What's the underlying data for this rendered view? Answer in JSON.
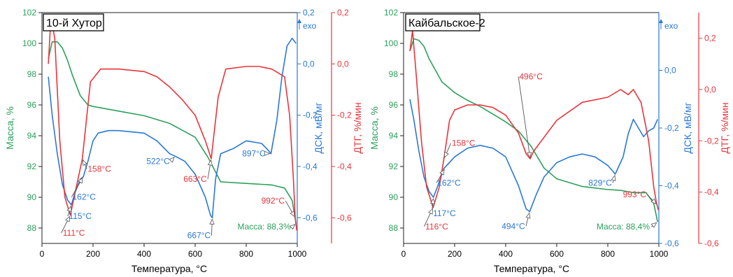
{
  "chart_data": [
    {
      "type": "line",
      "title": "10-й Хутор",
      "xlabel": "Температура, °C",
      "xlim": [
        0,
        1000
      ],
      "xticks": [
        "0",
        "200",
        "400",
        "600",
        "800",
        "1000"
      ],
      "exo_label": "exo",
      "axes": {
        "mass": {
          "label": "Масса, %",
          "ylim": [
            87,
            102
          ],
          "ticks": [
            "88",
            "90",
            "92",
            "94",
            "96",
            "98",
            "100",
            "102"
          ],
          "color": "#2ca05a"
        },
        "dsc": {
          "label": "ДСК, мВ/мг",
          "ylim": [
            -0.7,
            0.2
          ],
          "ticks": [
            "-0,6",
            "-0,4",
            "-0,2",
            "0,0",
            "0,2"
          ],
          "tick_values": [
            -0.6,
            -0.4,
            -0.2,
            0.0,
            0.2
          ],
          "color": "#2a78d6"
        },
        "dtg": {
          "label": "ДТГ, %/мин",
          "ylim": [
            -0.7,
            0.2
          ],
          "ticks": [
            "-0,6",
            "-0,4",
            "-0,2",
            "0,0",
            "0,2"
          ],
          "tick_values": [
            -0.6,
            -0.4,
            -0.2,
            0.0,
            0.2
          ],
          "color": "#e8353b"
        }
      },
      "series": [
        {
          "axis": "mass",
          "color": "#2ca05a",
          "x": [
            25,
            40,
            60,
            80,
            100,
            120,
            150,
            180,
            200,
            300,
            400,
            500,
            600,
            650,
            700,
            800,
            900,
            950,
            980,
            995
          ],
          "y": [
            99.0,
            100.1,
            100.1,
            99.7,
            98.9,
            97.9,
            96.6,
            96.0,
            95.9,
            95.6,
            95.3,
            94.8,
            93.9,
            92.6,
            91.0,
            90.9,
            90.8,
            90.6,
            89.8,
            88.3
          ]
        },
        {
          "axis": "dsc",
          "color": "#2a78d6",
          "x": [
            25,
            40,
            60,
            80,
            100,
            115,
            130,
            150,
            162,
            180,
            200,
            220,
            260,
            300,
            400,
            450,
            500,
            522,
            560,
            600,
            640,
            660,
            667,
            680,
            700,
            750,
            800,
            860,
            880,
            897,
            920,
            940,
            960,
            980,
            995
          ],
          "y": [
            -0.05,
            -0.2,
            -0.35,
            -0.47,
            -0.53,
            -0.55,
            -0.5,
            -0.45,
            -0.44,
            -0.38,
            -0.3,
            -0.27,
            -0.26,
            -0.26,
            -0.27,
            -0.3,
            -0.35,
            -0.36,
            -0.38,
            -0.43,
            -0.52,
            -0.59,
            -0.6,
            -0.45,
            -0.35,
            -0.33,
            -0.3,
            -0.31,
            -0.33,
            -0.35,
            -0.22,
            -0.05,
            0.07,
            0.1,
            0.08
          ]
        },
        {
          "axis": "dtg",
          "color": "#e8353b",
          "x": [
            25,
            35,
            50,
            70,
            90,
            111,
            130,
            158,
            190,
            230,
            250,
            300,
            400,
            450,
            500,
            550,
            600,
            640,
            663,
            690,
            720,
            800,
            850,
            900,
            950,
            970,
            985,
            992,
            998
          ],
          "y": [
            0.0,
            0.18,
            0.1,
            -0.3,
            -0.52,
            -0.59,
            -0.5,
            -0.37,
            -0.07,
            -0.02,
            -0.02,
            -0.02,
            -0.03,
            -0.05,
            -0.09,
            -0.14,
            -0.2,
            -0.3,
            -0.37,
            -0.13,
            -0.02,
            -0.01,
            -0.01,
            -0.02,
            -0.05,
            -0.2,
            -0.45,
            -0.6,
            -0.65
          ]
        }
      ],
      "annotations": [
        {
          "text": "158°C",
          "color": "#e8353b",
          "x": 158,
          "y": -0.37,
          "axis": "dtg",
          "tx": 225,
          "ty": -0.42
        },
        {
          "text": "162°C",
          "color": "#2a78d6",
          "x": 162,
          "y": -0.44,
          "axis": "dsc",
          "tx": 165,
          "ty": -0.53
        },
        {
          "text": "115°C",
          "color": "#2a78d6",
          "x": 115,
          "y": -0.55,
          "axis": "dsc",
          "tx": 150,
          "ty": -0.605
        },
        {
          "text": "111°C",
          "color": "#e8353b",
          "x": 111,
          "y": -0.59,
          "axis": "dtg",
          "tx": 125,
          "ty": -0.67
        },
        {
          "text": "522°C",
          "color": "#2a78d6",
          "x": 522,
          "y": -0.36,
          "axis": "dsc",
          "tx": 455,
          "ty": -0.39
        },
        {
          "text": "663°C",
          "color": "#e8353b",
          "x": 663,
          "y": -0.37,
          "axis": "dtg",
          "tx": 600,
          "ty": -0.46
        },
        {
          "text": "897°C",
          "color": "#2a78d6",
          "x": 897,
          "y": -0.35,
          "axis": "dsc",
          "tx": 830,
          "ty": -0.36
        },
        {
          "text": "667°C",
          "color": "#2a78d6",
          "x": 667,
          "y": -0.6,
          "axis": "dsc",
          "tx": 615,
          "ty": -0.68
        },
        {
          "text": "992°C",
          "color": "#e8353b",
          "x": 992,
          "y": -0.6,
          "axis": "dtg",
          "tx": 905,
          "ty": -0.545
        },
        {
          "text": "Масса: 88,3%",
          "color": "#2ca05a",
          "x": 995,
          "y": 88.3,
          "axis": "mass",
          "tx": 870,
          "ty": 87.9
        }
      ]
    },
    {
      "type": "line",
      "title": "Кайбальское-2",
      "xlabel": "Температура, °C",
      "xlim": [
        0,
        1000
      ],
      "xticks": [
        "0",
        "200",
        "400",
        "600",
        "800",
        "1000"
      ],
      "exo_label": "exo",
      "axes": {
        "mass": {
          "label": "Масса, %",
          "ylim": [
            87,
            102
          ],
          "ticks": [
            "88",
            "90",
            "92",
            "94",
            "96",
            "98",
            "100",
            "102"
          ],
          "color": "#2ca05a"
        },
        "dsc": {
          "label": "ДСК, мВ/мг",
          "ylim": [
            -0.6,
            0.2
          ],
          "ticks": [
            "-0,6",
            "-0,4",
            "-0,2",
            "0,0"
          ],
          "tick_values": [
            -0.6,
            -0.4,
            -0.2,
            0.0
          ],
          "color": "#2a78d6"
        },
        "dtg": {
          "label": "ДТГ, %/мин",
          "ylim": [
            -0.6,
            0.3
          ],
          "ticks": [
            "-0,6",
            "-0,4",
            "-0,2",
            "0,0",
            "0,2"
          ],
          "tick_values": [
            -0.6,
            -0.4,
            -0.2,
            0.0,
            0.2
          ],
          "color": "#e8353b"
        }
      },
      "series": [
        {
          "axis": "mass",
          "color": "#2ca05a",
          "x": [
            25,
            40,
            60,
            80,
            100,
            150,
            200,
            250,
            300,
            400,
            450,
            500,
            550,
            600,
            700,
            800,
            850,
            900,
            950,
            980,
            995
          ],
          "y": [
            99.5,
            100.3,
            100.2,
            99.8,
            99.0,
            97.5,
            96.8,
            96.3,
            95.9,
            94.9,
            94.3,
            93.3,
            91.9,
            91.2,
            90.7,
            90.5,
            90.45,
            90.3,
            90.3,
            89.6,
            88.4
          ]
        },
        {
          "axis": "dsc",
          "color": "#2a78d6",
          "x": [
            25,
            40,
            60,
            80,
            100,
            117,
            130,
            158,
            200,
            250,
            300,
            350,
            400,
            450,
            480,
            494,
            520,
            550,
            600,
            650,
            700,
            750,
            800,
            820,
            829,
            860,
            880,
            900,
            920,
            940,
            960,
            980,
            995
          ],
          "y": [
            -0.1,
            -0.17,
            -0.28,
            -0.37,
            -0.42,
            -0.44,
            -0.41,
            -0.34,
            -0.3,
            -0.27,
            -0.26,
            -0.27,
            -0.3,
            -0.4,
            -0.48,
            -0.49,
            -0.43,
            -0.37,
            -0.32,
            -0.3,
            -0.29,
            -0.3,
            -0.33,
            -0.35,
            -0.36,
            -0.3,
            -0.22,
            -0.17,
            -0.2,
            -0.23,
            -0.21,
            -0.2,
            -0.17
          ]
        },
        {
          "axis": "dtg",
          "color": "#e8353b",
          "x": [
            25,
            35,
            50,
            70,
            90,
            116,
            140,
            158,
            180,
            200,
            250,
            300,
            350,
            400,
            450,
            480,
            496,
            510,
            540,
            600,
            700,
            800,
            850,
            880,
            900,
            930,
            960,
            980,
            990,
            998
          ],
          "y": [
            0.15,
            0.23,
            0.05,
            -0.2,
            -0.38,
            -0.46,
            -0.38,
            -0.27,
            -0.12,
            -0.08,
            -0.06,
            -0.06,
            -0.07,
            -0.1,
            -0.17,
            -0.25,
            -0.27,
            -0.24,
            -0.2,
            -0.12,
            -0.05,
            -0.03,
            0.0,
            -0.02,
            0.0,
            -0.05,
            -0.2,
            -0.38,
            -0.44,
            -0.47
          ]
        }
      ],
      "annotations": [
        {
          "text": "158°C",
          "color": "#e8353b",
          "x": 158,
          "y": -0.27,
          "axis": "dtg",
          "tx": 235,
          "ty": -0.22
        },
        {
          "text": "162°C",
          "color": "#2a78d6",
          "x": 162,
          "y": -0.34,
          "axis": "dsc",
          "tx": 178,
          "ty": -0.4
        },
        {
          "text": "117°C",
          "color": "#2a78d6",
          "x": 117,
          "y": -0.44,
          "axis": "dsc",
          "tx": 160,
          "ty": -0.505
        },
        {
          "text": "116°C",
          "color": "#e8353b",
          "x": 116,
          "y": -0.46,
          "axis": "dtg",
          "tx": 130,
          "ty": -0.545
        },
        {
          "text": "496°C",
          "color": "#e8353b",
          "x": 496,
          "y": -0.27,
          "axis": "dtg",
          "tx": 499,
          "ty": 0.04
        },
        {
          "text": "494°C",
          "color": "#2a78d6",
          "x": 494,
          "y": -0.49,
          "axis": "dsc",
          "tx": 430,
          "ty": -0.55
        },
        {
          "text": "829°C",
          "color": "#2a78d6",
          "x": 829,
          "y": -0.36,
          "axis": "dsc",
          "tx": 770,
          "ty": -0.4
        },
        {
          "text": "993°C",
          "color": "#e8353b",
          "x": 993,
          "y": -0.45,
          "axis": "dtg",
          "tx": 905,
          "ty": -0.42
        },
        {
          "text": "Масса: 88,4%",
          "color": "#2ca05a",
          "x": 995,
          "y": 88.4,
          "axis": "mass",
          "tx": 860,
          "ty": 87.9
        }
      ]
    }
  ]
}
